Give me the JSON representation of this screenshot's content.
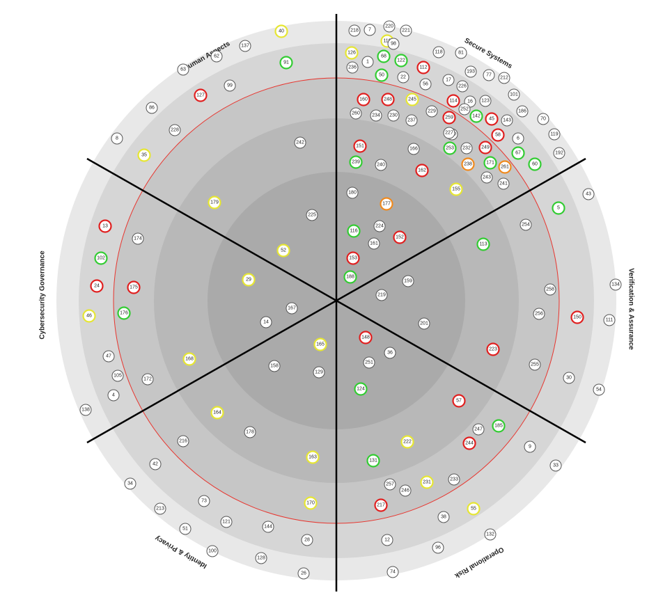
{
  "sectors": [
    {
      "id": "human-aspects",
      "title": "Human Aspects"
    },
    {
      "id": "secure-systems",
      "title": "Secure Systems"
    },
    {
      "id": "verification-assurance",
      "title": "Verification & Assurance"
    },
    {
      "id": "operational-risk",
      "title": "Operational Risk"
    },
    {
      "id": "identity-privacy",
      "title": "Identity & Privacy"
    },
    {
      "id": "cybersecurity-governance",
      "title": "Cybersecurity Governance"
    }
  ],
  "colors": {
    "ring_fills": [
      "#e8e8e8",
      "#d6d6d6",
      "#c6c6c6",
      "#b8b8b8",
      "#aaaaaa"
    ],
    "divider": "#000000",
    "threshold": "#e8352e",
    "status": {
      "none": "#555555",
      "red": "#e02020",
      "yellow": "#e6e633",
      "green": "#33cc33",
      "orange": "#f08a1e"
    }
  },
  "items": [
    {
      "label": "218",
      "status": "none"
    },
    {
      "label": "7",
      "status": "none"
    },
    {
      "label": "220",
      "status": "none"
    },
    {
      "label": "221",
      "status": "none"
    },
    {
      "label": "110",
      "status": "yellow"
    },
    {
      "label": "98",
      "status": "none"
    },
    {
      "label": "126",
      "status": "yellow"
    },
    {
      "label": "68",
      "status": "green"
    },
    {
      "label": "122",
      "status": "green"
    },
    {
      "label": "118",
      "status": "none"
    },
    {
      "label": "81",
      "status": "none"
    },
    {
      "label": "236",
      "status": "none"
    },
    {
      "label": "1",
      "status": "none"
    },
    {
      "label": "112",
      "status": "red"
    },
    {
      "label": "193",
      "status": "none"
    },
    {
      "label": "77",
      "status": "none"
    },
    {
      "label": "212",
      "status": "none"
    },
    {
      "label": "50",
      "status": "green"
    },
    {
      "label": "22",
      "status": "none"
    },
    {
      "label": "56",
      "status": "none"
    },
    {
      "label": "17",
      "status": "none"
    },
    {
      "label": "226",
      "status": "none"
    },
    {
      "label": "101",
      "status": "none"
    },
    {
      "label": "160",
      "status": "red"
    },
    {
      "label": "248",
      "status": "red"
    },
    {
      "label": "245",
      "status": "yellow"
    },
    {
      "label": "114",
      "status": "red"
    },
    {
      "label": "16",
      "status": "none"
    },
    {
      "label": "123",
      "status": "none"
    },
    {
      "label": "260",
      "status": "none"
    },
    {
      "label": "234",
      "status": "none"
    },
    {
      "label": "230",
      "status": "none"
    },
    {
      "label": "237",
      "status": "none"
    },
    {
      "label": "229",
      "status": "none"
    },
    {
      "label": "259",
      "status": "red"
    },
    {
      "label": "142",
      "status": "green"
    },
    {
      "label": "45",
      "status": "red"
    },
    {
      "label": "143",
      "status": "none"
    },
    {
      "label": "186",
      "status": "none"
    },
    {
      "label": "70",
      "status": "none"
    },
    {
      "label": "252",
      "status": "none"
    },
    {
      "label": "250",
      "status": "none"
    },
    {
      "label": "227",
      "status": "none"
    },
    {
      "label": "58",
      "status": "red"
    },
    {
      "label": "119",
      "status": "none"
    },
    {
      "label": "6",
      "status": "none"
    },
    {
      "label": "151",
      "status": "red"
    },
    {
      "label": "166",
      "status": "none"
    },
    {
      "label": "253",
      "status": "green"
    },
    {
      "label": "232",
      "status": "none"
    },
    {
      "label": "249",
      "status": "red"
    },
    {
      "label": "67",
      "status": "green"
    },
    {
      "label": "192",
      "status": "none"
    },
    {
      "label": "239",
      "status": "green"
    },
    {
      "label": "240",
      "status": "none"
    },
    {
      "label": "162",
      "status": "red"
    },
    {
      "label": "238",
      "status": "orange"
    },
    {
      "label": "171",
      "status": "green"
    },
    {
      "label": "261",
      "status": "orange"
    },
    {
      "label": "60",
      "status": "green"
    },
    {
      "label": "243",
      "status": "none"
    },
    {
      "label": "241",
      "status": "none"
    },
    {
      "label": "155",
      "status": "yellow"
    },
    {
      "label": "180",
      "status": "none"
    },
    {
      "label": "177",
      "status": "orange"
    },
    {
      "label": "116",
      "status": "green"
    },
    {
      "label": "224",
      "status": "none"
    },
    {
      "label": "152",
      "status": "red"
    },
    {
      "label": "161",
      "status": "none"
    },
    {
      "label": "153",
      "status": "red"
    },
    {
      "label": "188",
      "status": "green"
    },
    {
      "label": "159",
      "status": "none"
    },
    {
      "label": "219",
      "status": "none"
    },
    {
      "label": "201",
      "status": "none"
    },
    {
      "label": "43",
      "status": "none"
    },
    {
      "label": "5",
      "status": "green"
    },
    {
      "label": "254",
      "status": "none"
    },
    {
      "label": "113",
      "status": "green"
    },
    {
      "label": "134",
      "status": "none"
    },
    {
      "label": "258",
      "status": "none"
    },
    {
      "label": "256",
      "status": "none"
    },
    {
      "label": "150",
      "status": "red"
    },
    {
      "label": "111",
      "status": "none"
    },
    {
      "label": "223",
      "status": "red"
    },
    {
      "label": "255",
      "status": "none"
    },
    {
      "label": "30",
      "status": "none"
    },
    {
      "label": "54",
      "status": "none"
    },
    {
      "label": "148",
      "status": "red"
    },
    {
      "label": "36",
      "status": "none"
    },
    {
      "label": "251",
      "status": "none"
    },
    {
      "label": "124",
      "status": "green"
    },
    {
      "label": "57",
      "status": "red"
    },
    {
      "label": "247",
      "status": "none"
    },
    {
      "label": "185",
      "status": "green"
    },
    {
      "label": "222",
      "status": "yellow"
    },
    {
      "label": "244",
      "status": "red"
    },
    {
      "label": "9",
      "status": "none"
    },
    {
      "label": "131",
      "status": "green"
    },
    {
      "label": "33",
      "status": "none"
    },
    {
      "label": "233",
      "status": "none"
    },
    {
      "label": "257",
      "status": "none"
    },
    {
      "label": "231",
      "status": "yellow"
    },
    {
      "label": "246",
      "status": "none"
    },
    {
      "label": "217",
      "status": "red"
    },
    {
      "label": "55",
      "status": "yellow"
    },
    {
      "label": "38",
      "status": "none"
    },
    {
      "label": "132",
      "status": "none"
    },
    {
      "label": "12",
      "status": "none"
    },
    {
      "label": "96",
      "status": "none"
    },
    {
      "label": "74",
      "status": "none"
    },
    {
      "label": "40",
      "status": "yellow"
    },
    {
      "label": "137",
      "status": "none"
    },
    {
      "label": "62",
      "status": "none"
    },
    {
      "label": "91",
      "status": "green"
    },
    {
      "label": "63",
      "status": "none"
    },
    {
      "label": "99",
      "status": "none"
    },
    {
      "label": "127",
      "status": "red"
    },
    {
      "label": "86",
      "status": "none"
    },
    {
      "label": "228",
      "status": "none"
    },
    {
      "label": "8",
      "status": "none"
    },
    {
      "label": "35",
      "status": "yellow"
    },
    {
      "label": "242",
      "status": "none"
    },
    {
      "label": "179",
      "status": "yellow"
    },
    {
      "label": "225",
      "status": "none"
    },
    {
      "label": "52",
      "status": "yellow"
    },
    {
      "label": "29",
      "status": "yellow"
    },
    {
      "label": "167",
      "status": "none"
    },
    {
      "label": "14",
      "status": "none"
    },
    {
      "label": "13",
      "status": "red"
    },
    {
      "label": "174",
      "status": "none"
    },
    {
      "label": "102",
      "status": "green"
    },
    {
      "label": "24",
      "status": "red"
    },
    {
      "label": "175",
      "status": "red"
    },
    {
      "label": "46",
      "status": "yellow"
    },
    {
      "label": "176",
      "status": "green"
    },
    {
      "label": "47",
      "status": "none"
    },
    {
      "label": "168",
      "status": "yellow"
    },
    {
      "label": "105",
      "status": "none"
    },
    {
      "label": "172",
      "status": "none"
    },
    {
      "label": "4",
      "status": "none"
    },
    {
      "label": "138",
      "status": "none"
    },
    {
      "label": "165",
      "status": "yellow"
    },
    {
      "label": "158",
      "status": "none"
    },
    {
      "label": "129",
      "status": "none"
    },
    {
      "label": "164",
      "status": "yellow"
    },
    {
      "label": "178",
      "status": "none"
    },
    {
      "label": "216",
      "status": "none"
    },
    {
      "label": "163",
      "status": "yellow"
    },
    {
      "label": "42",
      "status": "none"
    },
    {
      "label": "34",
      "status": "none"
    },
    {
      "label": "73",
      "status": "none"
    },
    {
      "label": "170",
      "status": "yellow"
    },
    {
      "label": "213",
      "status": "none"
    },
    {
      "label": "121",
      "status": "none"
    },
    {
      "label": "144",
      "status": "none"
    },
    {
      "label": "51",
      "status": "none"
    },
    {
      "label": "28",
      "status": "none"
    },
    {
      "label": "100",
      "status": "none"
    },
    {
      "label": "128",
      "status": "none"
    },
    {
      "label": "26",
      "status": "none"
    }
  ]
}
